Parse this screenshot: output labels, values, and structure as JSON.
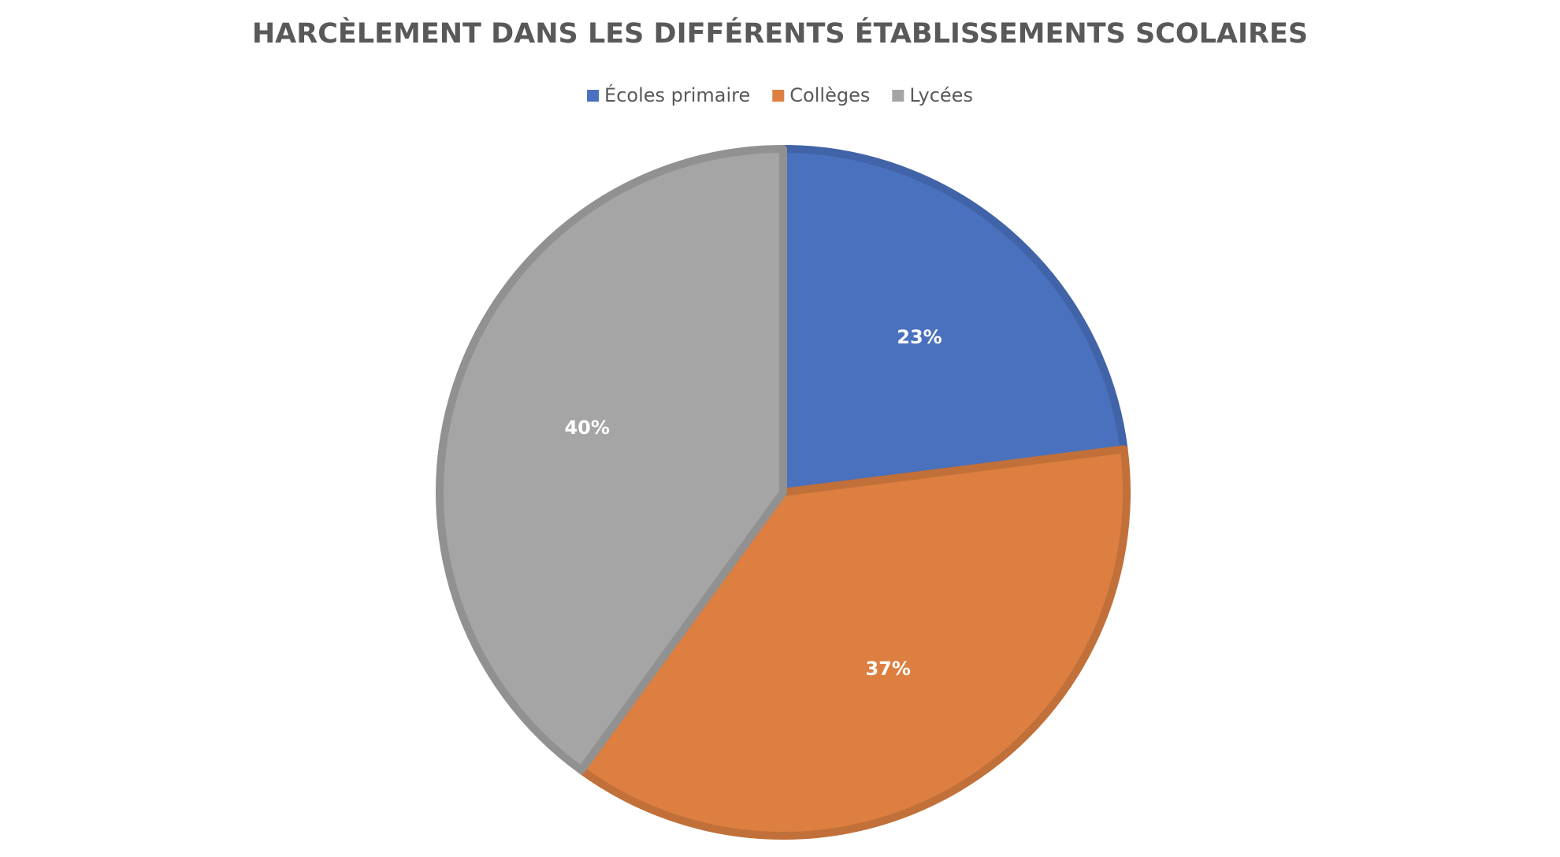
{
  "chart_data": {
    "type": "pie",
    "title": "HARCÈLEMENT DANS LES DIFFÉRENTS ÉTABLISSEMENTS SCOLAIRES",
    "categories": [
      "Écoles primaire",
      "Collèges",
      "Lycées"
    ],
    "values": [
      23,
      37,
      40
    ],
    "value_labels": [
      "23%",
      "37%",
      "40%"
    ],
    "colors": [
      "#4a71be",
      "#dc7f41",
      "#a5a5a5"
    ],
    "legend": "top"
  }
}
